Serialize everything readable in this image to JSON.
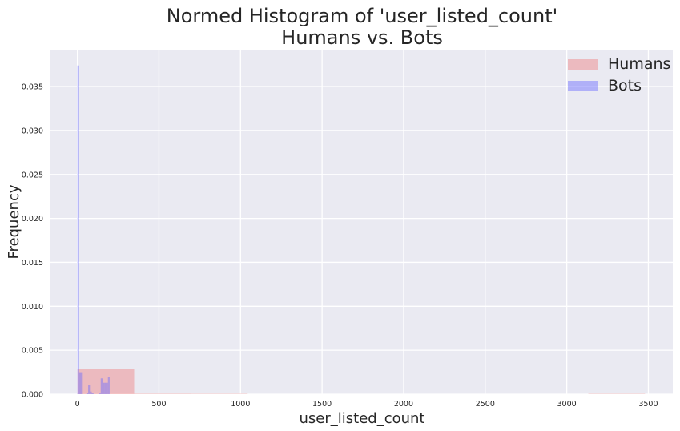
{
  "chart_data": {
    "type": "bar",
    "subtype": "overlaid-normed-histogram",
    "title": [
      "Normed Histogram of 'user_listed_count'",
      "Humans vs. Bots"
    ],
    "xlabel": "user_listed_count",
    "ylabel": "Frequency",
    "xlim": [
      -170,
      3650
    ],
    "ylim": [
      0,
      0.0392
    ],
    "xticks": [
      0,
      500,
      1000,
      1500,
      2000,
      2500,
      3000,
      3500
    ],
    "xtick_labels": [
      "0",
      "500",
      "1000",
      "1500",
      "2000",
      "2500",
      "3000",
      "3500"
    ],
    "yticks": [
      0,
      0.005,
      0.01,
      0.015,
      0.02,
      0.025,
      0.03,
      0.035
    ],
    "ytick_labels": [
      "0.000",
      "0.005",
      "0.010",
      "0.015",
      "0.020",
      "0.025",
      "0.030",
      "0.035"
    ],
    "grid": true,
    "legend_position": "top-right",
    "background_color": "#eaeaf2",
    "series": [
      {
        "name": "Humans",
        "color": "#f08080",
        "opacity": 0.45,
        "bins": [
          {
            "x0": 0,
            "x1": 348,
            "value": 0.00285
          },
          {
            "x0": 348,
            "x1": 696,
            "value": 5e-05
          },
          {
            "x0": 696,
            "x1": 1044,
            "value": 4e-05
          },
          {
            "x0": 1044,
            "x1": 1392,
            "value": 0
          },
          {
            "x0": 1392,
            "x1": 1740,
            "value": 0
          },
          {
            "x0": 1740,
            "x1": 2088,
            "value": 0
          },
          {
            "x0": 2088,
            "x1": 2436,
            "value": 0
          },
          {
            "x0": 2436,
            "x1": 2784,
            "value": 0
          },
          {
            "x0": 2784,
            "x1": 3132,
            "value": 0
          },
          {
            "x0": 3132,
            "x1": 3480,
            "value": 4e-05
          }
        ]
      },
      {
        "name": "Bots",
        "color": "#6b6bff",
        "opacity": 0.45,
        "bins": [
          {
            "x0": 0,
            "x1": 11,
            "value": 0.0374
          },
          {
            "x0": 11,
            "x1": 22,
            "value": 0.0025
          },
          {
            "x0": 22,
            "x1": 33,
            "value": 0.0025
          },
          {
            "x0": 33,
            "x1": 44,
            "value": 0
          },
          {
            "x0": 44,
            "x1": 55,
            "value": 0
          },
          {
            "x0": 55,
            "x1": 66,
            "value": 0.0001
          },
          {
            "x0": 66,
            "x1": 77,
            "value": 0.001
          },
          {
            "x0": 77,
            "x1": 88,
            "value": 0.0003
          },
          {
            "x0": 88,
            "x1": 99,
            "value": 0.0001
          },
          {
            "x0": 99,
            "x1": 110,
            "value": 0
          },
          {
            "x0": 110,
            "x1": 121,
            "value": 0
          },
          {
            "x0": 121,
            "x1": 132,
            "value": 0
          },
          {
            "x0": 132,
            "x1": 143,
            "value": 0.0001
          },
          {
            "x0": 143,
            "x1": 154,
            "value": 0.0018
          },
          {
            "x0": 154,
            "x1": 165,
            "value": 0.0013
          },
          {
            "x0": 165,
            "x1": 176,
            "value": 0.0013
          },
          {
            "x0": 176,
            "x1": 187,
            "value": 0.0013
          },
          {
            "x0": 187,
            "x1": 198,
            "value": 0.002
          }
        ]
      }
    ]
  }
}
